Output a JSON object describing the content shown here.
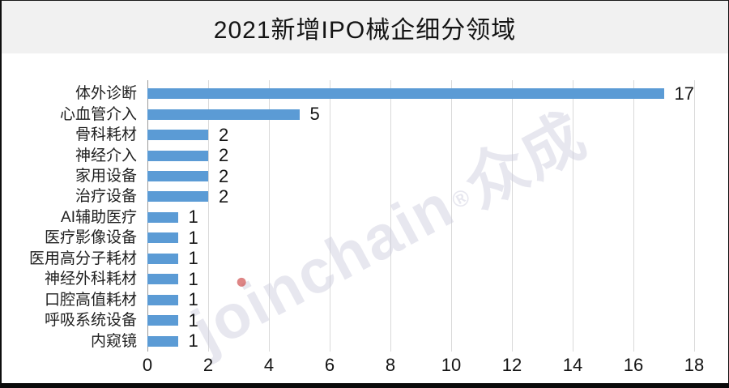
{
  "title": "2021新增IPO械企细分领域",
  "watermark": {
    "part_jo": "jo",
    "part_i": "i",
    "part_nchain": "nchain",
    "reg": "®",
    "cjk": "众成"
  },
  "chart_data": {
    "type": "bar",
    "orientation": "horizontal",
    "title": "2021新增IPO械企细分领域",
    "categories": [
      "体外诊断",
      "心血管介入",
      "骨科耗材",
      "神经介入",
      "家用设备",
      "治疗设备",
      "AI辅助医疗",
      "医疗影像设备",
      "医用高分子耗材",
      "神经外科耗材",
      "口腔高值耗材",
      "呼吸系统设备",
      "内窥镜"
    ],
    "values": [
      17,
      5,
      2,
      2,
      2,
      2,
      1,
      1,
      1,
      1,
      1,
      1,
      1
    ],
    "xlabel": "",
    "ylabel": "",
    "xlim": [
      0,
      18
    ],
    "xticks": [
      0,
      2,
      4,
      6,
      8,
      10,
      12,
      14,
      16,
      18
    ],
    "grid": "vertical-only",
    "legend": "none",
    "colors": {
      "bar": "#5b9bd5",
      "gridline": "#d9d9d9",
      "axis_line": "#9b9b9b",
      "header_background": "#f1f1f1",
      "text": "#141414",
      "watermark": "#c9c9db",
      "watermark_dot": "#cc4444"
    }
  }
}
